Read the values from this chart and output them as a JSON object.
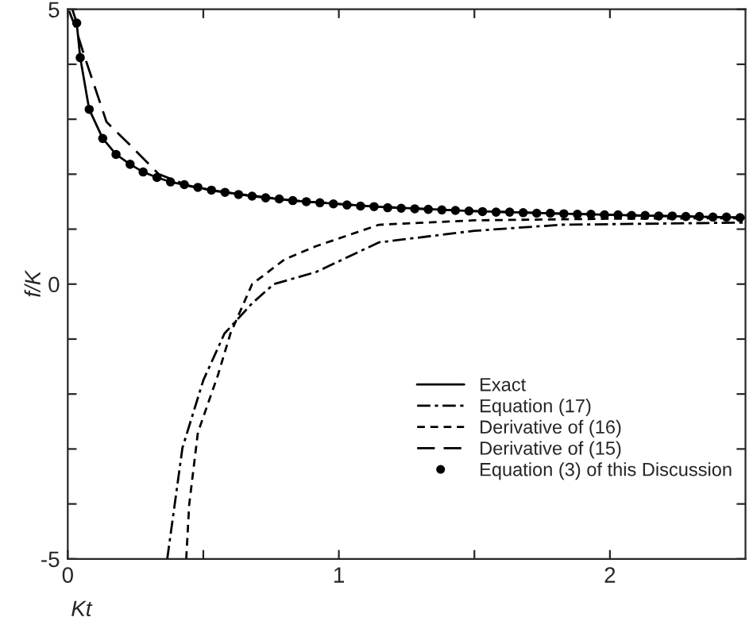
{
  "chart_data": {
    "type": "line",
    "xlabel": "Kt",
    "ylabel": "f/K",
    "xlim": [
      0,
      2.5
    ],
    "ylim": [
      -5,
      5
    ],
    "xticks": [
      0,
      {
        "value": 0.5,
        "label": null
      },
      1,
      {
        "value": 1.5,
        "label": null
      },
      2
    ],
    "yticks": [
      -5,
      {
        "value": -4,
        "label": null
      },
      {
        "value": -3,
        "label": null
      },
      {
        "value": -2,
        "label": null
      },
      {
        "value": -1,
        "label": null
      },
      0,
      {
        "value": 1,
        "label": null
      },
      {
        "value": 2,
        "label": null
      },
      {
        "value": 3,
        "label": null
      },
      {
        "value": 4,
        "label": null
      },
      5
    ],
    "grid": false,
    "legend": "lower right",
    "series": [
      {
        "name": "Exact",
        "line_style": "solid",
        "color": "#000000",
        "x": [
          0.017,
          0.033,
          0.046,
          0.079,
          0.129,
          0.178,
          0.23,
          0.278,
          0.329,
          0.379,
          0.53,
          0.68,
          0.83,
          1.13,
          1.48,
          1.83,
          2.18,
          2.5
        ],
        "values": [
          5,
          4.75,
          4.12,
          3.18,
          2.65,
          2.36,
          2.18,
          2.04,
          1.94,
          1.86,
          1.71,
          1.6,
          1.52,
          1.41,
          1.33,
          1.28,
          1.24,
          1.21
        ]
      },
      {
        "name": "Equation (17)",
        "line_style": "dashdot",
        "color": "#000000",
        "x": [
          0.367,
          0.423,
          0.5,
          0.578,
          0.68,
          0.76,
          0.916,
          1.148,
          1.5,
          1.82,
          2.5
        ],
        "values": [
          -5,
          -2.98,
          -1.75,
          -0.9,
          -0.35,
          0.0,
          0.22,
          0.76,
          0.97,
          1.08,
          1.12
        ]
      },
      {
        "name": "Derivative of (16)",
        "line_style": "dashed",
        "color": "#000000",
        "x": [
          0.437,
          0.448,
          0.48,
          0.553,
          0.6,
          0.68,
          0.8,
          0.916,
          1.148,
          1.5,
          2.0,
          2.5
        ],
        "values": [
          -5,
          -4.01,
          -2.7,
          -1.67,
          -0.9,
          0.0,
          0.45,
          0.69,
          1.08,
          1.16,
          1.19,
          1.2
        ]
      },
      {
        "name": "Derivative of (15)",
        "line_style": "longdashed",
        "color": "#000000",
        "x": [
          0.005,
          0.027,
          0.06,
          0.143,
          0.24,
          0.336,
          0.45,
          0.55,
          0.83,
          1.13,
          1.48,
          1.83,
          2.18,
          2.5
        ],
        "values": [
          4.97,
          4.69,
          4.17,
          2.95,
          2.48,
          2.0,
          1.78,
          1.69,
          1.52,
          1.41,
          1.33,
          1.28,
          1.24,
          1.21
        ]
      },
      {
        "name": "Equation (3) of this Discussion",
        "type": "scatter",
        "marker": "circle",
        "color": "#000000",
        "x": [
          0.033,
          0.046,
          0.079,
          0.129,
          0.178,
          0.23,
          0.278,
          0.329,
          0.379,
          0.43,
          0.48,
          0.53,
          0.58,
          0.63,
          0.68,
          0.73,
          0.78,
          0.83,
          0.88,
          0.93,
          0.98,
          1.03,
          1.08,
          1.13,
          1.18,
          1.23,
          1.28,
          1.33,
          1.38,
          1.43,
          1.48,
          1.53,
          1.58,
          1.63,
          1.68,
          1.73,
          1.78,
          1.83,
          1.88,
          1.93,
          1.98,
          2.03,
          2.08,
          2.13,
          2.18,
          2.23,
          2.28,
          2.33,
          2.38,
          2.43,
          2.48
        ],
        "values": [
          4.75,
          4.12,
          3.18,
          2.65,
          2.36,
          2.18,
          2.04,
          1.94,
          1.86,
          1.81,
          1.76,
          1.71,
          1.67,
          1.63,
          1.6,
          1.57,
          1.55,
          1.52,
          1.5,
          1.48,
          1.46,
          1.44,
          1.42,
          1.41,
          1.39,
          1.38,
          1.37,
          1.36,
          1.35,
          1.34,
          1.33,
          1.32,
          1.31,
          1.31,
          1.3,
          1.29,
          1.29,
          1.28,
          1.27,
          1.27,
          1.26,
          1.26,
          1.25,
          1.25,
          1.24,
          1.24,
          1.23,
          1.23,
          1.22,
          1.22,
          1.21
        ]
      }
    ]
  }
}
